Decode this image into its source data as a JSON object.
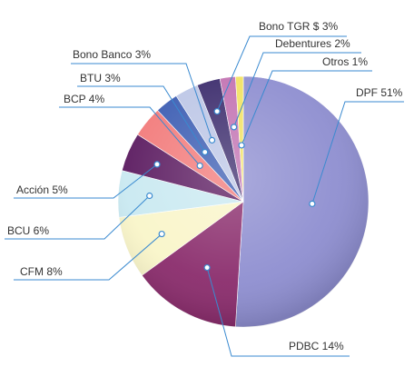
{
  "chart_data": {
    "type": "pie",
    "values": [
      51,
      14,
      8,
      6,
      5,
      4,
      3,
      3,
      3,
      2,
      1
    ],
    "value_labels": [
      "DPF 51%",
      "PDBC 14%",
      "CFM 8%",
      "BCU 6%",
      "Acción 5%",
      "BCP 4%",
      "BTU 3%",
      "Bono Banco 3%",
      "Bono TGR $ 3%",
      "Debentures 2%",
      "Otros 1%"
    ],
    "colors": [
      "#8e8ed0",
      "#8a2c6c",
      "#f9f5c9",
      "#c9e9f1",
      "#5b1b60",
      "#f27a7a",
      "#3b5cb2",
      "#bcc6e6",
      "#3b2b6c",
      "#c272b2",
      "#f2e262"
    ]
  }
}
